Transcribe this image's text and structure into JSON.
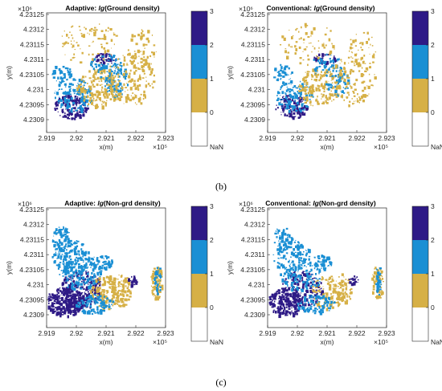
{
  "captions": {
    "b": "(b)",
    "c": "(c)"
  },
  "colors": {
    "c0_1": "#d6b046",
    "c1_2": "#1a8fd4",
    "c2_3": "#2e1a86",
    "nan": "#ffffff",
    "axis": "#262626"
  },
  "chart_data": [
    {
      "type": "heatmap",
      "title_prefix": "Adaptive: ",
      "title_italic": "lg",
      "title_suffix": "(Ground density)",
      "xlabel": "x(m)",
      "ylabel": "y(m)",
      "x_exponent": "×10⁵",
      "y_exponent": "×10⁶",
      "xlim": [
        2.919,
        2.923
      ],
      "ylim": [
        4.23088,
        4.23126
      ],
      "x_ticks": [
        "2.919",
        "2.92",
        "2.921",
        "2.922",
        "2.923"
      ],
      "y_ticks": [
        "4.23125",
        "4.2312",
        "4.23115",
        "4.2311",
        "4.23105",
        "4.231",
        "4.23095",
        "4.2309"
      ],
      "colorbar": {
        "ticks": [
          "3",
          "2",
          "1",
          "0"
        ],
        "nan_label": "NaN",
        "classes": [
          "NaN",
          "0-1",
          "1-2",
          "2-3"
        ]
      },
      "dominant_classes": [
        "0-1",
        "1-2",
        "2-3"
      ]
    },
    {
      "type": "heatmap",
      "title_prefix": "Conventional: ",
      "title_italic": "lg",
      "title_suffix": "(Ground density)",
      "xlabel": "x(m)",
      "ylabel": "y(m)",
      "x_exponent": "×10⁵",
      "y_exponent": "×10⁶",
      "xlim": [
        2.919,
        2.923
      ],
      "ylim": [
        4.23088,
        4.23126
      ],
      "x_ticks": [
        "2.919",
        "2.92",
        "2.921",
        "2.922",
        "2.923"
      ],
      "y_ticks": [
        "4.23125",
        "4.2312",
        "4.23115",
        "4.2311",
        "4.23105",
        "4.231",
        "4.23095",
        "4.2309"
      ],
      "colorbar": {
        "ticks": [
          "3",
          "2",
          "1",
          "0"
        ],
        "nan_label": "NaN",
        "classes": [
          "NaN",
          "0-1",
          "1-2",
          "2-3"
        ]
      },
      "dominant_classes": [
        "0-1",
        "1-2",
        "2-3"
      ]
    },
    {
      "type": "heatmap",
      "title_prefix": "Adaptive: ",
      "title_italic": "lg",
      "title_suffix": "(Non-grd density)",
      "xlabel": "x(m)",
      "ylabel": "y(m)",
      "x_exponent": "×10⁵",
      "y_exponent": "×10⁶",
      "xlim": [
        2.919,
        2.923
      ],
      "ylim": [
        4.23088,
        4.23126
      ],
      "x_ticks": [
        "2.919",
        "2.92",
        "2.921",
        "2.922",
        "2.923"
      ],
      "y_ticks": [
        "4.23125",
        "4.2312",
        "4.23115",
        "4.2311",
        "4.23105",
        "4.231",
        "4.23095",
        "4.2309"
      ],
      "colorbar": {
        "ticks": [
          "3",
          "2",
          "1",
          "0"
        ],
        "nan_label": "NaN",
        "classes": [
          "NaN",
          "0-1",
          "1-2",
          "2-3"
        ]
      },
      "dominant_classes": [
        "2-3",
        "1-2",
        "0-1"
      ]
    },
    {
      "type": "heatmap",
      "title_prefix": "Conventional: ",
      "title_italic": "lg",
      "title_suffix": "(Non-grd density)",
      "xlabel": "x(m)",
      "ylabel": "y(m)",
      "x_exponent": "×10⁵",
      "y_exponent": "×10⁶",
      "xlim": [
        2.919,
        2.923
      ],
      "ylim": [
        4.23088,
        4.23126
      ],
      "x_ticks": [
        "2.919",
        "2.92",
        "2.921",
        "2.922",
        "2.923"
      ],
      "y_ticks": [
        "4.23125",
        "4.2312",
        "4.23115",
        "4.2311",
        "4.23105",
        "4.231",
        "4.23095",
        "4.2309"
      ],
      "colorbar": {
        "ticks": [
          "3",
          "2",
          "1",
          "0"
        ],
        "nan_label": "NaN",
        "classes": [
          "NaN",
          "0-1",
          "1-2",
          "2-3"
        ]
      },
      "dominant_classes": [
        "2-3",
        "1-2",
        "0-1"
      ]
    }
  ]
}
